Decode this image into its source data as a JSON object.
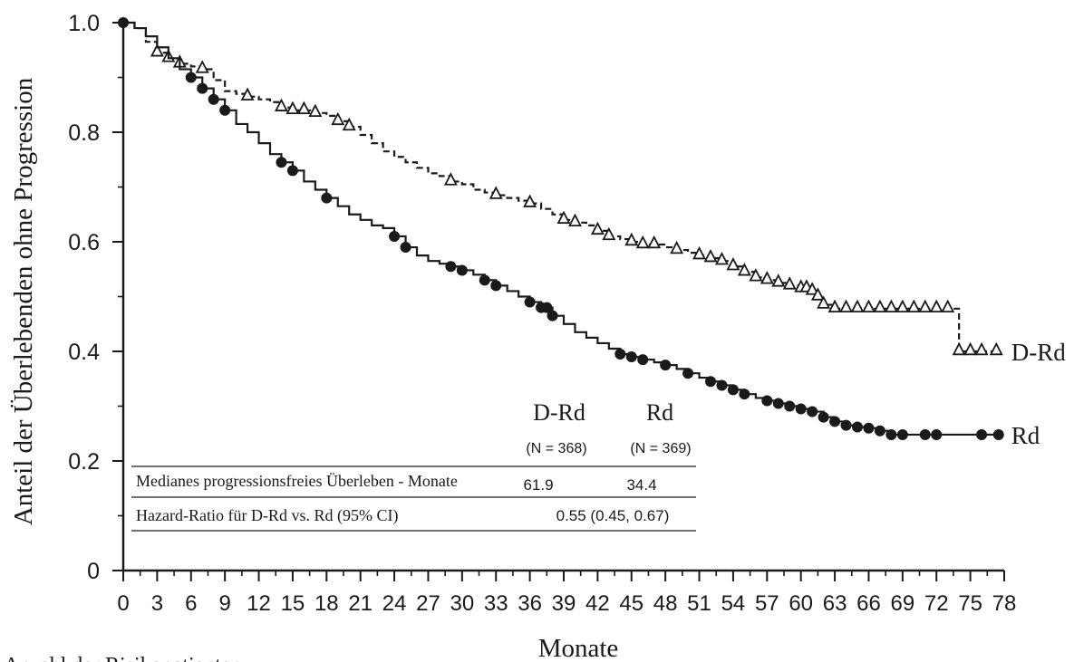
{
  "chart_data": {
    "type": "line",
    "ylabel": "Anteil der Überlebenden ohne Progression",
    "xlabel": "Monate",
    "below_axis_caption": "Anzahl der Risikopatienten",
    "xlim": [
      0,
      78
    ],
    "ylim": [
      0,
      1.0
    ],
    "x_ticks": [
      "0",
      "3",
      "6",
      "9",
      "12",
      "15",
      "18",
      "21",
      "24",
      "27",
      "30",
      "33",
      "36",
      "39",
      "42",
      "45",
      "48",
      "51",
      "54",
      "57",
      "60",
      "63",
      "66",
      "69",
      "72",
      "75",
      "78"
    ],
    "y_ticks": [
      "0",
      "0.2",
      "0.4",
      "0.6",
      "0.8",
      "1.0"
    ],
    "grid": false,
    "series": [
      {
        "name": "D-Rd",
        "line_style": "dashed",
        "marker": "open-triangle",
        "color": "#1a1a1a",
        "x": [
          0,
          1,
          2,
          3,
          4,
          5,
          6,
          7,
          8,
          9,
          10,
          11,
          12,
          13,
          14,
          15,
          16,
          17,
          18,
          19,
          20,
          21,
          22,
          23,
          24,
          25,
          26,
          27,
          28,
          29,
          30,
          31,
          32,
          33,
          34,
          35,
          36,
          37,
          38,
          39,
          40,
          41,
          42,
          43,
          44,
          45,
          46,
          47,
          48,
          49,
          50,
          51,
          52,
          53,
          54,
          55,
          56,
          57,
          58,
          59,
          60,
          61,
          61.5,
          62,
          63,
          64,
          65,
          66,
          67,
          68,
          69,
          70,
          71,
          72,
          73,
          73.5,
          74,
          75,
          76,
          77.5
        ],
        "y": [
          1.0,
          0.99,
          0.965,
          0.945,
          0.935,
          0.925,
          0.92,
          0.915,
          0.895,
          0.875,
          0.87,
          0.865,
          0.86,
          0.855,
          0.845,
          0.84,
          0.84,
          0.835,
          0.83,
          0.82,
          0.81,
          0.795,
          0.78,
          0.765,
          0.755,
          0.745,
          0.735,
          0.725,
          0.72,
          0.71,
          0.705,
          0.695,
          0.69,
          0.685,
          0.68,
          0.675,
          0.67,
          0.66,
          0.65,
          0.64,
          0.635,
          0.63,
          0.62,
          0.61,
          0.605,
          0.6,
          0.595,
          0.595,
          0.59,
          0.585,
          0.58,
          0.575,
          0.57,
          0.565,
          0.555,
          0.545,
          0.535,
          0.53,
          0.525,
          0.52,
          0.515,
          0.51,
          0.5,
          0.485,
          0.478,
          0.478,
          0.478,
          0.478,
          0.478,
          0.478,
          0.478,
          0.478,
          0.478,
          0.478,
          0.478,
          0.478,
          0.4,
          0.4,
          0.4,
          0.4
        ],
        "censor_x": [
          3,
          4,
          5,
          7,
          11,
          14,
          15,
          16,
          17,
          19,
          20,
          29,
          33,
          36,
          39,
          40,
          42,
          43,
          45,
          46,
          47,
          49,
          51,
          52,
          53,
          54,
          55,
          56,
          57,
          58,
          59,
          60,
          60.5,
          61,
          61.5,
          62,
          63,
          64,
          65,
          66,
          67,
          68,
          69,
          70,
          71,
          72,
          73,
          74,
          75,
          76,
          77.3
        ],
        "end_label": "D-Rd"
      },
      {
        "name": "Rd",
        "line_style": "solid",
        "marker": "filled-circle",
        "color": "#1a1a1a",
        "x": [
          0,
          1,
          2,
          3,
          4,
          5,
          6,
          7,
          8,
          9,
          10,
          11,
          12,
          13,
          14,
          15,
          16,
          17,
          18,
          19,
          20,
          21,
          22,
          23,
          24,
          25,
          26,
          27,
          28,
          29,
          30,
          31,
          32,
          33,
          34,
          35,
          36,
          37,
          38,
          39,
          40,
          41,
          42,
          43,
          44,
          45,
          46,
          47,
          48,
          49,
          50,
          51,
          52,
          53,
          54,
          55,
          56,
          57,
          58,
          59,
          60,
          61,
          62,
          63,
          64,
          65,
          66,
          67,
          68,
          69,
          70,
          71,
          72,
          73,
          74,
          75,
          76,
          77.5
        ],
        "y": [
          1.0,
          0.99,
          0.975,
          0.955,
          0.935,
          0.915,
          0.9,
          0.88,
          0.86,
          0.84,
          0.815,
          0.8,
          0.78,
          0.76,
          0.745,
          0.73,
          0.71,
          0.695,
          0.68,
          0.665,
          0.65,
          0.64,
          0.63,
          0.625,
          0.61,
          0.59,
          0.575,
          0.565,
          0.56,
          0.555,
          0.548,
          0.54,
          0.53,
          0.52,
          0.51,
          0.5,
          0.49,
          0.48,
          0.465,
          0.45,
          0.435,
          0.425,
          0.415,
          0.405,
          0.395,
          0.39,
          0.385,
          0.38,
          0.375,
          0.368,
          0.36,
          0.352,
          0.345,
          0.338,
          0.33,
          0.322,
          0.315,
          0.31,
          0.305,
          0.3,
          0.295,
          0.29,
          0.28,
          0.272,
          0.265,
          0.262,
          0.26,
          0.255,
          0.248,
          0.248,
          0.248,
          0.248,
          0.248,
          0.248,
          0.248,
          0.248,
          0.248,
          0.248
        ],
        "censor_x": [
          6,
          7,
          8,
          9,
          14,
          15,
          18,
          24,
          25,
          29,
          30,
          32,
          33,
          36,
          37,
          37.5,
          38,
          44,
          45,
          46,
          48,
          50,
          52,
          53,
          54,
          55,
          57,
          58,
          59,
          60,
          61,
          62,
          63,
          64,
          65,
          66,
          67,
          68,
          69,
          71,
          72,
          76,
          77.5
        ],
        "end_label": "Rd"
      }
    ],
    "summary_table": {
      "col_headers": [
        "D-Rd",
        "Rd"
      ],
      "col_n": [
        "(N = 368)",
        "(N = 369)"
      ],
      "rows": [
        {
          "label": "Medianes progressionsfreies Überleben - Monate",
          "values": [
            "61.9",
            "34.4"
          ]
        },
        {
          "label": "Hazard-Ratio für D-Rd vs. Rd (95% CI)",
          "value": "0.55 (0.45, 0.67)"
        }
      ]
    }
  }
}
